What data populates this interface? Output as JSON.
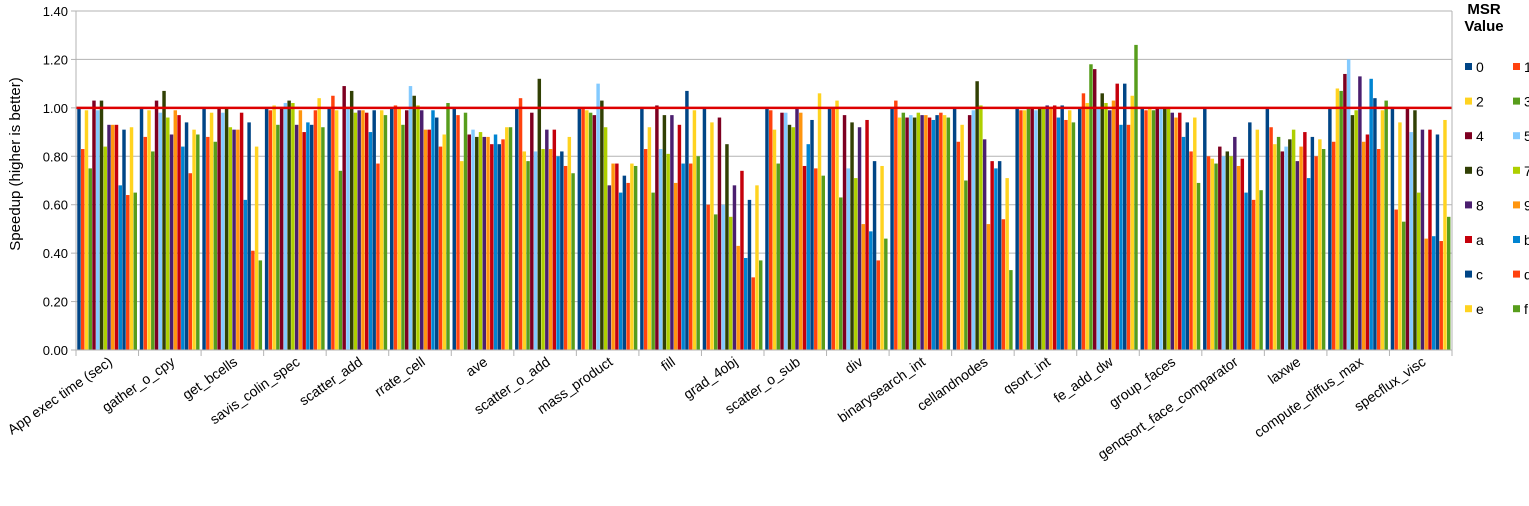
{
  "chart_data": {
    "type": "bar",
    "ylabel": "Speedup (higher is better)",
    "xlabel": "",
    "ylim": [
      0,
      1.4
    ],
    "yticks": [
      "0.00",
      "0.20",
      "0.40",
      "0.60",
      "0.80",
      "1.00",
      "1.20",
      "1.40"
    ],
    "grid": "horizontal",
    "reference_line": {
      "value": 1.0,
      "color": "#dd0000"
    },
    "legend": {
      "title": "MSR\nValue",
      "placement": "right"
    },
    "categories": [
      "App exec time (sec)",
      "gather_o_cpy",
      "get_bcells",
      "savis_colin_spec",
      "scatter_add",
      "rrate_cell",
      "ave",
      "scatter_o_add",
      "mass_product",
      "fill",
      "grad_4obj",
      "scatter_o_sub",
      "div",
      "binarysearch_int",
      "cellandnodes",
      "qsort_int",
      "fe_add_dw",
      "group_faces",
      "genqsort_face_comparator",
      "laxwe",
      "compute_diffus_max",
      "specflux_visc"
    ],
    "series": [
      {
        "name": "0",
        "color": "#004586",
        "values": [
          1.0,
          1.0,
          1.0,
          1.0,
          1.0,
          1.0,
          1.0,
          1.0,
          1.0,
          1.0,
          1.0,
          1.0,
          1.0,
          1.0,
          1.0,
          1.0,
          1.0,
          1.0,
          1.0,
          1.0,
          1.0,
          1.0
        ]
      },
      {
        "name": "1",
        "color": "#ff420e",
        "values": [
          0.83,
          0.88,
          0.88,
          0.99,
          1.05,
          1.01,
          0.97,
          1.04,
          1.0,
          0.83,
          0.6,
          0.99,
          1.0,
          1.03,
          0.86,
          0.99,
          1.06,
          0.99,
          0.8,
          0.92,
          0.86,
          0.58
        ]
      },
      {
        "name": "2",
        "color": "#ffd320",
        "values": [
          0.99,
          0.99,
          0.98,
          1.01,
          0.99,
          1.0,
          0.78,
          0.82,
          0.99,
          0.92,
          0.94,
          0.91,
          1.03,
          0.96,
          0.93,
          0.99,
          1.02,
          1.0,
          0.79,
          0.85,
          1.08,
          0.94
        ]
      },
      {
        "name": "3",
        "color": "#579d1c",
        "values": [
          0.75,
          0.82,
          0.86,
          0.93,
          0.74,
          0.93,
          0.98,
          0.78,
          0.98,
          0.65,
          0.56,
          0.77,
          0.63,
          0.98,
          0.7,
          1.0,
          1.18,
          0.99,
          0.77,
          0.88,
          1.07,
          0.53
        ]
      },
      {
        "name": "4",
        "color": "#7e0021",
        "values": [
          1.03,
          1.03,
          1.0,
          1.0,
          1.09,
          0.99,
          0.89,
          0.98,
          0.97,
          1.01,
          0.96,
          0.98,
          0.97,
          0.96,
          0.97,
          1.0,
          1.16,
          1.0,
          0.84,
          0.82,
          1.14,
          1.0
        ]
      },
      {
        "name": "5",
        "color": "#83caff",
        "values": [
          0.99,
          0.98,
          0.98,
          1.02,
          1.0,
          1.09,
          0.91,
          0.82,
          1.1,
          0.83,
          0.6,
          0.98,
          0.75,
          0.97,
          0.99,
          0.99,
          1.0,
          1.0,
          0.8,
          0.84,
          1.2,
          0.9
        ]
      },
      {
        "name": "6",
        "color": "#314004",
        "values": [
          1.03,
          1.07,
          1.0,
          1.03,
          1.07,
          1.05,
          0.88,
          1.12,
          1.03,
          0.97,
          0.85,
          0.93,
          0.94,
          0.96,
          1.11,
          1.0,
          1.06,
          1.0,
          0.82,
          0.87,
          0.97,
          0.99
        ]
      },
      {
        "name": "7",
        "color": "#aecf00",
        "values": [
          0.84,
          0.96,
          0.92,
          1.02,
          0.98,
          1.01,
          0.9,
          0.83,
          0.92,
          0.81,
          0.55,
          0.92,
          0.71,
          0.98,
          1.01,
          1.0,
          1.02,
          1.0,
          0.8,
          0.91,
          0.99,
          0.65
        ]
      },
      {
        "name": "8",
        "color": "#4b1f6f",
        "values": [
          0.93,
          0.89,
          0.91,
          0.93,
          0.99,
          0.99,
          0.88,
          0.91,
          0.68,
          0.97,
          0.68,
          1.0,
          0.92,
          0.97,
          0.87,
          1.01,
          0.99,
          0.98,
          0.88,
          0.78,
          1.13,
          0.91
        ]
      },
      {
        "name": "9",
        "color": "#ff950e",
        "values": [
          0.93,
          0.99,
          0.91,
          0.99,
          0.99,
          0.91,
          0.88,
          0.83,
          0.77,
          0.69,
          0.43,
          0.98,
          0.52,
          0.97,
          0.52,
          1.0,
          1.03,
          0.96,
          0.76,
          0.84,
          0.86,
          0.46
        ]
      },
      {
        "name": "a",
        "color": "#c5000b",
        "values": [
          0.93,
          0.97,
          0.98,
          0.9,
          0.98,
          0.91,
          0.85,
          0.91,
          0.77,
          0.93,
          0.74,
          0.76,
          0.95,
          0.96,
          0.78,
          1.01,
          1.1,
          0.98,
          0.79,
          0.9,
          0.89,
          0.91
        ]
      },
      {
        "name": "b",
        "color": "#0084d1",
        "values": [
          0.68,
          0.84,
          0.62,
          0.94,
          0.9,
          0.99,
          0.89,
          0.8,
          0.65,
          0.77,
          0.38,
          0.85,
          0.49,
          0.95,
          0.75,
          0.96,
          0.93,
          0.88,
          0.65,
          0.71,
          1.12,
          0.47
        ]
      },
      {
        "name": "c",
        "color": "#004586",
        "values": [
          0.91,
          0.94,
          0.94,
          0.93,
          0.99,
          0.96,
          0.85,
          0.82,
          0.72,
          1.07,
          0.62,
          0.95,
          0.78,
          0.97,
          0.78,
          1.01,
          1.1,
          0.94,
          0.94,
          0.88,
          1.04,
          0.89
        ]
      },
      {
        "name": "d",
        "color": "#ff420e",
        "values": [
          0.64,
          0.73,
          0.41,
          0.99,
          0.77,
          0.84,
          0.87,
          0.76,
          0.69,
          0.77,
          0.3,
          0.75,
          0.37,
          0.98,
          0.54,
          0.95,
          0.93,
          0.82,
          0.62,
          0.8,
          0.83,
          0.45
        ]
      },
      {
        "name": "e",
        "color": "#ffd320",
        "values": [
          0.92,
          0.91,
          0.84,
          1.04,
          0.99,
          0.89,
          0.92,
          0.88,
          0.77,
          0.99,
          0.68,
          1.06,
          0.76,
          0.97,
          0.71,
          0.99,
          1.05,
          0.96,
          0.91,
          0.87,
          0.99,
          0.95
        ]
      },
      {
        "name": "f",
        "color": "#579d1c",
        "values": [
          0.65,
          0.89,
          0.37,
          0.92,
          0.97,
          1.02,
          0.92,
          0.73,
          0.76,
          0.8,
          0.37,
          0.72,
          0.46,
          0.96,
          0.33,
          0.94,
          1.26,
          0.69,
          0.66,
          0.83,
          1.03,
          0.55
        ]
      }
    ]
  }
}
